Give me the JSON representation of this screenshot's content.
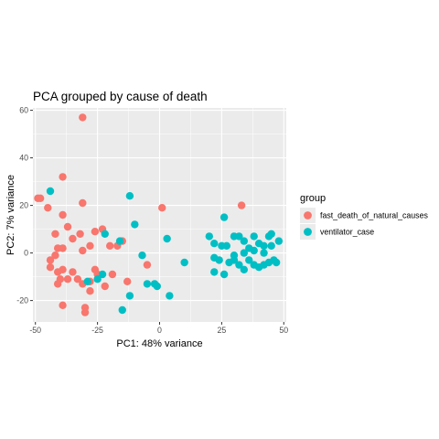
{
  "chart_data": {
    "type": "scatter",
    "title": "PCA grouped by cause of death",
    "xlabel": "PC1: 48% variance",
    "ylabel": "PC2: 7% variance",
    "xlim": [
      -51,
      51
    ],
    "ylim": [
      -29,
      61
    ],
    "x_ticks": [
      -50,
      -25,
      0,
      25,
      50
    ],
    "x_tick_labels": [
      "-50",
      "-25",
      "0",
      "25",
      "50"
    ],
    "y_ticks": [
      -20,
      0,
      20,
      40,
      60
    ],
    "y_tick_labels": [
      "-20",
      "0",
      "20",
      "40",
      "60"
    ],
    "grid": true,
    "legend": {
      "title": "group",
      "position": "right"
    },
    "series": [
      {
        "name": "fast_death_of_natural_causes",
        "color": "#F8766D",
        "points": [
          [
            -31,
            57
          ],
          [
            -39,
            32
          ],
          [
            -49,
            23
          ],
          [
            -48,
            23
          ],
          [
            -45,
            19
          ],
          [
            -31,
            21
          ],
          [
            -39,
            16
          ],
          [
            -23,
            10
          ],
          [
            -37,
            11
          ],
          [
            -32,
            8
          ],
          [
            -42,
            8
          ],
          [
            -26,
            9
          ],
          [
            -35,
            6
          ],
          [
            -15,
            5
          ],
          [
            -41,
            2
          ],
          [
            -28,
            3
          ],
          [
            -39,
            2
          ],
          [
            -31,
            1
          ],
          [
            -20,
            3
          ],
          [
            -17,
            3
          ],
          [
            -42,
            -1
          ],
          [
            -44,
            -3
          ],
          [
            -44,
            -6
          ],
          [
            -26,
            -7
          ],
          [
            -25,
            -9
          ],
          [
            -39,
            -7
          ],
          [
            -41,
            -8
          ],
          [
            -35,
            -8
          ],
          [
            -19,
            -9
          ],
          [
            -37,
            -11
          ],
          [
            -40,
            -11
          ],
          [
            -33,
            -11
          ],
          [
            -31,
            -13
          ],
          [
            -41,
            -13
          ],
          [
            -28,
            -12
          ],
          [
            -22,
            -14
          ],
          [
            -13,
            -12
          ],
          [
            -28,
            -16
          ],
          [
            -39,
            -22
          ],
          [
            -30,
            -23
          ],
          [
            -30,
            -25
          ],
          [
            1,
            19
          ],
          [
            33,
            20
          ],
          [
            -5,
            -5
          ]
        ]
      },
      {
        "name": "ventilator_case",
        "color": "#00BFC4",
        "points": [
          [
            -44,
            26
          ],
          [
            -12,
            24
          ],
          [
            -10,
            12
          ],
          [
            -22,
            8
          ],
          [
            -16,
            5
          ],
          [
            -7,
            -1
          ],
          [
            -23,
            -9
          ],
          [
            -25,
            -11
          ],
          [
            -29,
            -12
          ],
          [
            -5,
            -13
          ],
          [
            -2,
            -13
          ],
          [
            -1,
            -14
          ],
          [
            -12,
            -18
          ],
          [
            -15,
            -24
          ],
          [
            4,
            -18
          ],
          [
            3,
            6
          ],
          [
            10,
            -4
          ],
          [
            26,
            15
          ],
          [
            20,
            7
          ],
          [
            22,
            4
          ],
          [
            25,
            3
          ],
          [
            27,
            3
          ],
          [
            30,
            7
          ],
          [
            32,
            7
          ],
          [
            34,
            5
          ],
          [
            36,
            2
          ],
          [
            38,
            7
          ],
          [
            40,
            4
          ],
          [
            42,
            3
          ],
          [
            44,
            7
          ],
          [
            45,
            3
          ],
          [
            48,
            5
          ],
          [
            22,
            -2
          ],
          [
            24,
            -3
          ],
          [
            28,
            -4
          ],
          [
            30,
            -3
          ],
          [
            32,
            -5
          ],
          [
            34,
            -7
          ],
          [
            36,
            -3
          ],
          [
            38,
            -5
          ],
          [
            40,
            -6
          ],
          [
            42,
            -5
          ],
          [
            44,
            -4
          ],
          [
            46,
            -3
          ],
          [
            47,
            -4
          ],
          [
            22,
            -8
          ],
          [
            26,
            -9
          ],
          [
            38,
            1
          ],
          [
            42,
            0
          ],
          [
            30,
            -1
          ],
          [
            45,
            8
          ],
          [
            34,
            0
          ]
        ]
      }
    ]
  }
}
